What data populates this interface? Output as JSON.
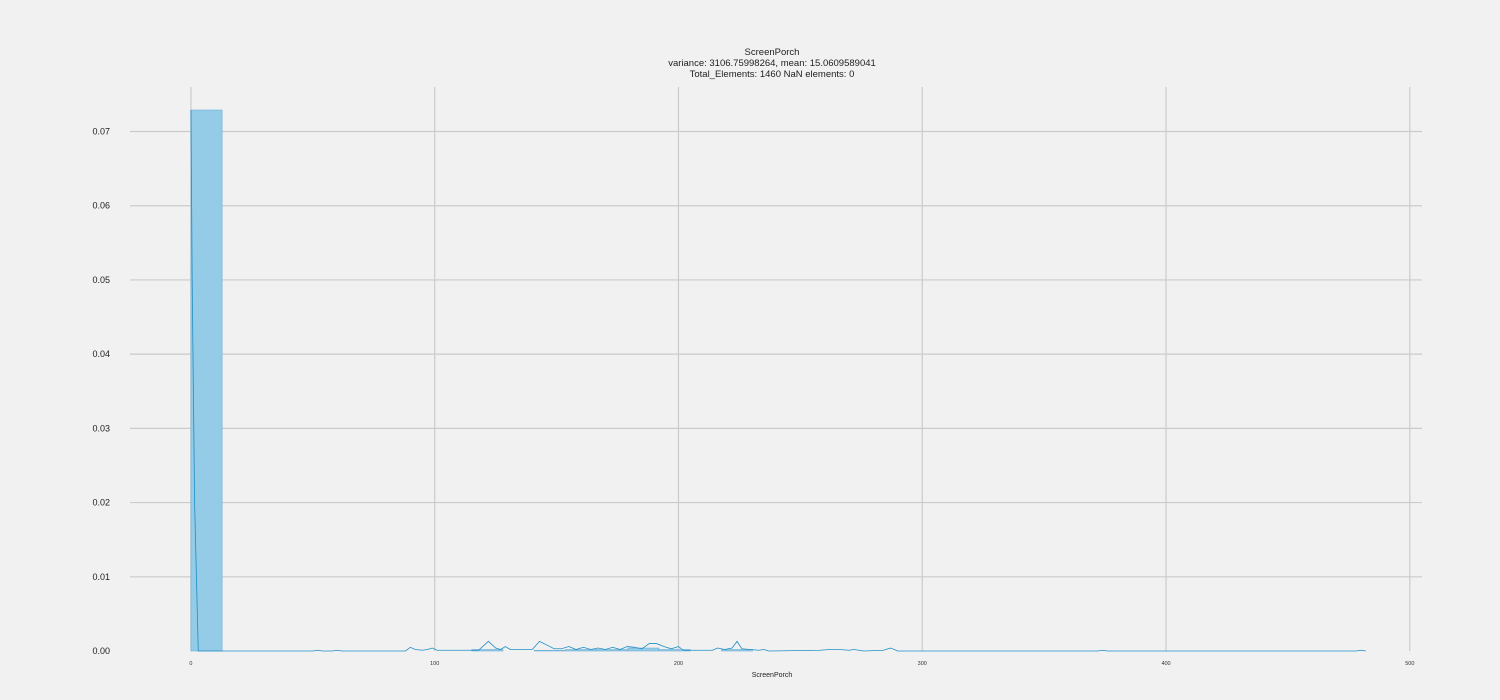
{
  "chart_data": {
    "type": "bar",
    "title": "ScreenPorch",
    "subtitle_lines": [
      "variance: 3106.75998264, mean: 15.0609589041",
      "Total_Elements: 1460 NaN elements: 0"
    ],
    "xlabel": "ScreenPorch",
    "ylabel": "",
    "xlim": [
      -25,
      505
    ],
    "ylim": [
      0,
      0.076
    ],
    "x_ticks": [
      0,
      100,
      200,
      300,
      400,
      500
    ],
    "x_tick_labels": [
      "0",
      "100",
      "200",
      "300",
      "400",
      "500"
    ],
    "y_ticks": [
      0,
      0.01,
      0.02,
      0.03,
      0.04,
      0.05,
      0.06,
      0.07
    ],
    "y_tick_labels": [
      "0.00",
      "0.01",
      "0.02",
      "0.03",
      "0.04",
      "0.05",
      "0.06",
      "0.07"
    ],
    "grid": true,
    "histogram": {
      "bin_width": 12.8,
      "bins": [
        {
          "x0": 0,
          "x1": 12.8,
          "density": 0.0729
        },
        {
          "x0": 115.2,
          "x1": 128,
          "density": 0.0002
        },
        {
          "x0": 140.8,
          "x1": 153.6,
          "density": 0.0001
        },
        {
          "x0": 153.6,
          "x1": 166.4,
          "density": 0.0002
        },
        {
          "x0": 166.4,
          "x1": 179.2,
          "density": 0.0002
        },
        {
          "x0": 179.2,
          "x1": 192,
          "density": 0.0004
        },
        {
          "x0": 192,
          "x1": 204.8,
          "density": 0.0002
        },
        {
          "x0": 217.6,
          "x1": 230.4,
          "density": 0.0002
        }
      ]
    },
    "kde": {
      "x": [
        0,
        0.5,
        1.5,
        3,
        50,
        52,
        54,
        58,
        60,
        62,
        88,
        90,
        92,
        95,
        97,
        99,
        101,
        118,
        120,
        122,
        125,
        127,
        129,
        131,
        140,
        143,
        146,
        149,
        152,
        155,
        158,
        161,
        164,
        167,
        170,
        173,
        176,
        179,
        182,
        185,
        188,
        191,
        194,
        197,
        200,
        202,
        214,
        216,
        219,
        222,
        224,
        226,
        233,
        235,
        237,
        258,
        262,
        266,
        270,
        272,
        276,
        284,
        287,
        290,
        372,
        374,
        376,
        478,
        480,
        482
      ],
      "y": [
        0.0729,
        0.05,
        0.02,
        0,
        0,
        0.0001,
        0,
        0,
        0.0001,
        0,
        0,
        0.0005,
        0.0002,
        0.0001,
        0.0002,
        0.0004,
        0.0001,
        0.0001,
        0.0007,
        0.0013,
        0.0004,
        0.0002,
        0.0006,
        0.0002,
        0.0002,
        0.0013,
        0.0008,
        0.0003,
        0.0003,
        0.0006,
        0.0002,
        0.0005,
        0.0002,
        0.0004,
        0.0002,
        0.0005,
        0.0002,
        0.0006,
        0.0005,
        0.0003,
        0.001,
        0.001,
        0.0006,
        0.0003,
        0.0006,
        0.0001,
        0.0001,
        0.0004,
        0.0002,
        0.0004,
        0.0013,
        0.0003,
        0.0001,
        0.0002,
        0,
        0.0001,
        0.0002,
        0.0002,
        0.0001,
        0.0002,
        0,
        0.0001,
        0.0004,
        0,
        0,
        0.0001,
        0,
        0,
        0.0001,
        0
      ]
    },
    "colors": {
      "bar_fill": "#94cbe6",
      "bar_stroke": "#6fb0d6",
      "kde_line": "#1f8ec6",
      "grid": "#cbcbcb",
      "background": "#f1f1f1"
    }
  }
}
